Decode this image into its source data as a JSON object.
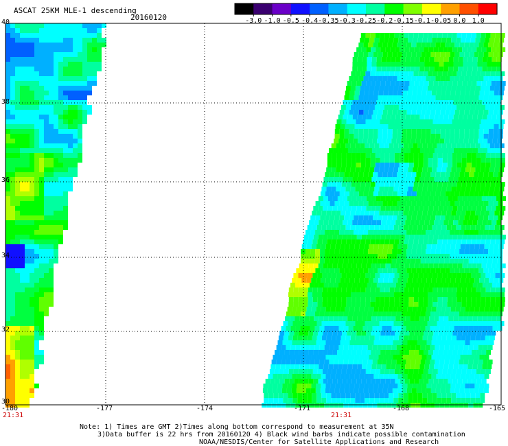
{
  "header": {
    "title": "ASCAT 25KM MLE-1 descending",
    "date": "20160120"
  },
  "colorbar": {
    "labels": [
      "-3.0",
      "-1.0",
      "-0.5",
      "-0.4",
      "-0.35",
      "-0.3",
      "-0.25",
      "-0.2",
      "-0.15",
      "-0.1",
      "-0.05",
      "0.0",
      "1.0"
    ],
    "colors": [
      "#000000",
      "#3a0070",
      "#6a00c8",
      "#1010ff",
      "#0060ff",
      "#00b0ff",
      "#00ffff",
      "#00ffa0",
      "#00ff00",
      "#80ff00",
      "#ffff00",
      "#ffa000",
      "#ff5000",
      "#ff0000"
    ]
  },
  "map": {
    "lat_labels": [
      "40",
      "38",
      "36",
      "34",
      "32",
      "30"
    ],
    "lon_labels": [
      "-180",
      "-177",
      "-174",
      "-171",
      "-168",
      "-165"
    ],
    "lat_range": [
      30,
      40
    ],
    "lon_range": [
      -180,
      -165
    ],
    "time_labels": [
      "21:31",
      "21:31"
    ],
    "grid": true
  },
  "footer": {
    "line1": "Note: 1) Times are GMT 2)Times along bottom correspond to measurement at 35N",
    "line2": "3)Data buffer is 22 hrs from 20160120 4) Black wind barbs indicate possible contamination",
    "line3": "NOAA/NESDIS/Center for Satellite Applications and Research"
  }
}
